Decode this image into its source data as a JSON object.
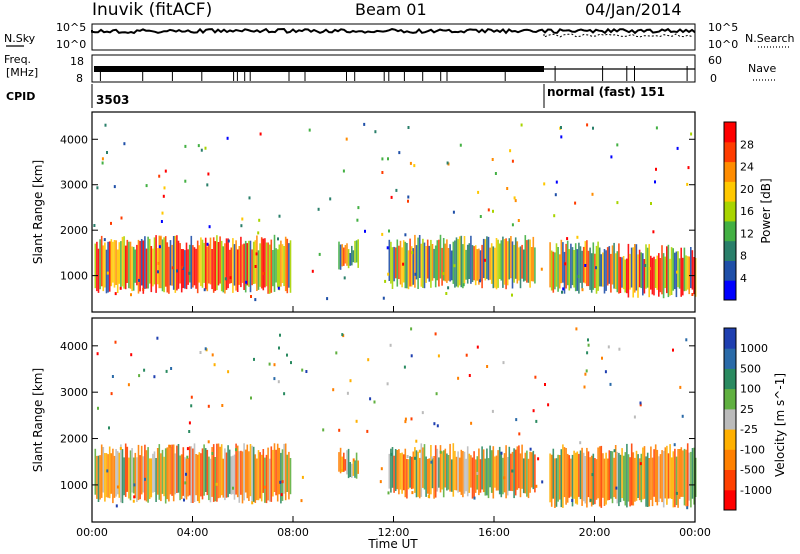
{
  "header": {
    "site": "Inuvik (fitACF)",
    "beam": "Beam 01",
    "date": "04/Jan/2014"
  },
  "strips": {
    "nsky_label": "N.Sky",
    "nsearch_label": "N.Search",
    "noise_ticks_left": [
      "10^5",
      "10^0"
    ],
    "noise_ticks_right": [
      "10^5",
      "10^0"
    ],
    "freq_label_1": "Freq.",
    "freq_label_2": "[MHz]",
    "freq_ticks": [
      "8",
      "18"
    ],
    "nave_label": "Nave",
    "nave_ticks": [
      "60",
      "0"
    ],
    "cpid_label": "CPID",
    "cpid_values": [
      "3503",
      "normal (fast) 151"
    ]
  },
  "chart_data": [
    {
      "type": "heatmap",
      "title": "",
      "xlabel": "Time UT",
      "ylabel": "Slant Range [km]",
      "x_ticks": [
        "00:00",
        "04:00",
        "08:00",
        "12:00",
        "16:00",
        "20:00",
        "00:00"
      ],
      "xlim_hours": [
        0,
        24
      ],
      "y_ticks": [
        1000,
        2000,
        3000,
        4000
      ],
      "ylim_km": [
        200,
        4600
      ],
      "colorbar": {
        "label": "Power [dB]",
        "ticks": [
          4,
          8,
          12,
          16,
          20,
          24,
          28
        ],
        "colors": [
          "#0000ff",
          "#1f4fa8",
          "#2a7f6a",
          "#43b043",
          "#a8d400",
          "#ffc800",
          "#ff8c00",
          "#ff3c00",
          "#ff0000"
        ]
      },
      "echo_regions": [
        {
          "t_start": 0.1,
          "t_end": 7.9,
          "range_km": [
            600,
            1900
          ],
          "level": "strong"
        },
        {
          "t_start": 9.8,
          "t_end": 10.6,
          "range_km": [
            1100,
            1800
          ],
          "level": "moderate"
        },
        {
          "t_start": 11.8,
          "t_end": 17.6,
          "range_km": [
            700,
            1900
          ],
          "level": "moderate"
        },
        {
          "t_start": 18.2,
          "t_end": 21.0,
          "range_km": [
            600,
            1800
          ],
          "level": "moderate"
        },
        {
          "t_start": 21.0,
          "t_end": 24.0,
          "range_km": [
            500,
            1700
          ],
          "level": "strong"
        }
      ]
    },
    {
      "type": "heatmap",
      "title": "",
      "xlabel": "Time UT",
      "ylabel": "Slant Range [km]",
      "x_ticks": [
        "00:00",
        "04:00",
        "08:00",
        "12:00",
        "16:00",
        "20:00",
        "00:00"
      ],
      "xlim_hours": [
        0,
        24
      ],
      "y_ticks": [
        1000,
        2000,
        3000,
        4000
      ],
      "ylim_km": [
        200,
        4600
      ],
      "colorbar": {
        "label": "Velocity [m s^-1]",
        "ticks": [
          "1000",
          "500",
          "100",
          "25",
          "-25",
          "-100",
          "-500",
          "-1000"
        ],
        "colors": [
          "#1f3fb0",
          "#2a6aa8",
          "#2a8a60",
          "#60b040",
          "#bbbbbb",
          "#ffb000",
          "#ff8000",
          "#ff4000",
          "#ff0000"
        ]
      },
      "echo_regions": [
        {
          "t_start": 0.1,
          "t_end": 7.9,
          "range_km": [
            600,
            1900
          ],
          "level": "negative"
        },
        {
          "t_start": 9.8,
          "t_end": 10.6,
          "range_km": [
            1100,
            1800
          ],
          "level": "negative"
        },
        {
          "t_start": 11.8,
          "t_end": 17.6,
          "range_km": [
            700,
            1900
          ],
          "level": "negative"
        },
        {
          "t_start": 18.2,
          "t_end": 24.0,
          "range_km": [
            500,
            1900
          ],
          "level": "negative"
        }
      ]
    }
  ]
}
